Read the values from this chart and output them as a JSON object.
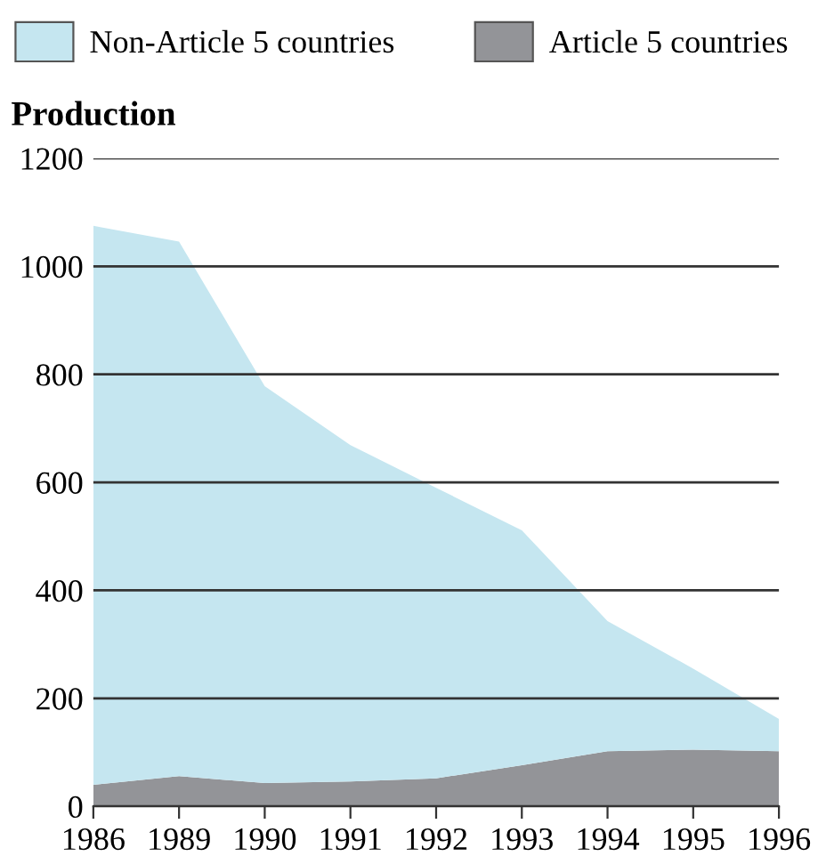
{
  "chart_data": {
    "type": "area",
    "stacked": true,
    "ylabel": "Production",
    "categories": [
      "1986",
      "1989",
      "1990",
      "1991",
      "1992",
      "1993",
      "1994",
      "1995",
      "1996"
    ],
    "series": [
      {
        "name": "Article 5 countries",
        "color": "#939498",
        "values": [
          40,
          56,
          43,
          46,
          52,
          76,
          102,
          105,
          102
        ]
      },
      {
        "name": "Non-Article 5 countries",
        "color": "#c5e6f0",
        "values": [
          1035,
          990,
          735,
          623,
          538,
          435,
          241,
          150,
          60
        ]
      }
    ],
    "ylim": [
      0,
      1200
    ],
    "yticks": [
      0,
      200,
      400,
      600,
      800,
      1000,
      1200
    ],
    "grid": "y",
    "legend": "top"
  }
}
